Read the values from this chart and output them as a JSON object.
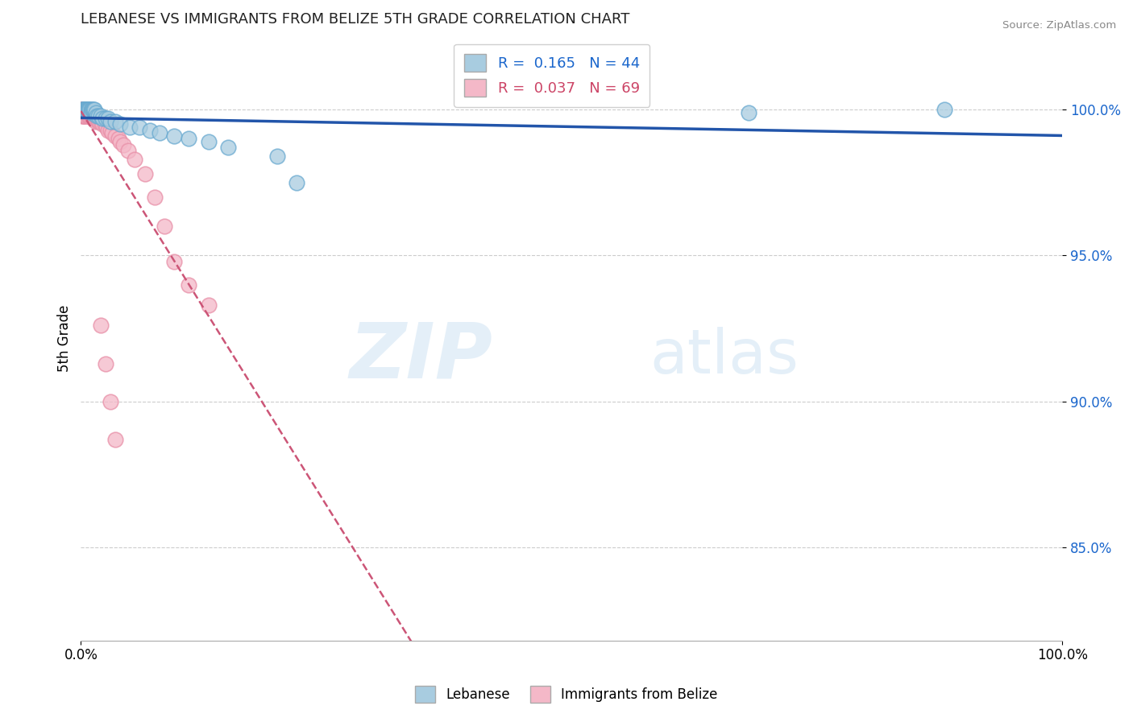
{
  "title": "LEBANESE VS IMMIGRANTS FROM BELIZE 5TH GRADE CORRELATION CHART",
  "source_text": "Source: ZipAtlas.com",
  "ylabel": "5th Grade",
  "xlim": [
    0.0,
    1.0
  ],
  "ylim": [
    0.818,
    1.025
  ],
  "yticks": [
    0.85,
    0.9,
    0.95,
    1.0
  ],
  "ytick_labels": [
    "85.0%",
    "90.0%",
    "95.0%",
    "100.0%"
  ],
  "xticks": [
    0.0,
    1.0
  ],
  "xtick_labels": [
    "0.0%",
    "100.0%"
  ],
  "legend1_label": "Lebanese",
  "legend2_label": "Immigrants from Belize",
  "r_blue": 0.165,
  "n_blue": 44,
  "r_pink": 0.037,
  "n_pink": 69,
  "blue_color": "#a8cce0",
  "pink_color": "#f4b8c8",
  "blue_edge_color": "#6aaad0",
  "pink_edge_color": "#e890a8",
  "blue_line_color": "#2255aa",
  "pink_line_color": "#cc5577",
  "watermark_zip": "ZIP",
  "watermark_atlas": "atlas",
  "blue_x": [
    0.001,
    0.002,
    0.002,
    0.003,
    0.003,
    0.004,
    0.004,
    0.005,
    0.005,
    0.006,
    0.006,
    0.007,
    0.007,
    0.008,
    0.008,
    0.009,
    0.01,
    0.01,
    0.011,
    0.012,
    0.013,
    0.014,
    0.015,
    0.016,
    0.018,
    0.02,
    0.022,
    0.025,
    0.028,
    0.03,
    0.035,
    0.04,
    0.05,
    0.06,
    0.07,
    0.08,
    0.095,
    0.11,
    0.13,
    0.15,
    0.2,
    0.22,
    0.68,
    0.88
  ],
  "blue_y": [
    1.0,
    1.0,
    1.0,
    1.0,
    1.0,
    1.0,
    1.0,
    1.0,
    1.0,
    1.0,
    1.0,
    1.0,
    1.0,
    1.0,
    1.0,
    1.0,
    1.0,
    0.999,
    1.0,
    1.0,
    1.0,
    1.0,
    0.999,
    0.998,
    0.998,
    0.998,
    0.997,
    0.997,
    0.997,
    0.996,
    0.996,
    0.995,
    0.994,
    0.994,
    0.993,
    0.992,
    0.991,
    0.99,
    0.989,
    0.987,
    0.984,
    0.975,
    0.999,
    1.0
  ],
  "pink_x": [
    0.001,
    0.001,
    0.001,
    0.001,
    0.001,
    0.002,
    0.002,
    0.002,
    0.002,
    0.003,
    0.003,
    0.003,
    0.003,
    0.004,
    0.004,
    0.004,
    0.005,
    0.005,
    0.005,
    0.006,
    0.006,
    0.006,
    0.007,
    0.007,
    0.007,
    0.008,
    0.008,
    0.008,
    0.009,
    0.009,
    0.01,
    0.01,
    0.01,
    0.011,
    0.011,
    0.012,
    0.012,
    0.013,
    0.013,
    0.014,
    0.015,
    0.015,
    0.016,
    0.017,
    0.018,
    0.019,
    0.02,
    0.022,
    0.024,
    0.026,
    0.028,
    0.03,
    0.032,
    0.035,
    0.038,
    0.04,
    0.043,
    0.048,
    0.055,
    0.065,
    0.075,
    0.085,
    0.095,
    0.11,
    0.13,
    0.02,
    0.025,
    0.03,
    0.035
  ],
  "pink_y": [
    1.0,
    1.0,
    1.0,
    1.0,
    0.998,
    1.0,
    1.0,
    1.0,
    0.998,
    1.0,
    1.0,
    0.999,
    0.998,
    1.0,
    1.0,
    0.998,
    1.0,
    0.999,
    0.998,
    1.0,
    1.0,
    0.999,
    1.0,
    0.999,
    0.998,
    1.0,
    0.999,
    0.998,
    1.0,
    0.998,
    1.0,
    0.999,
    0.998,
    0.999,
    0.998,
    0.999,
    0.997,
    0.998,
    0.997,
    0.997,
    0.997,
    0.996,
    0.997,
    0.997,
    0.996,
    0.996,
    0.996,
    0.995,
    0.995,
    0.994,
    0.993,
    0.993,
    0.992,
    0.991,
    0.99,
    0.989,
    0.988,
    0.986,
    0.983,
    0.978,
    0.97,
    0.96,
    0.948,
    0.94,
    0.933,
    0.926,
    0.913,
    0.9,
    0.887
  ]
}
